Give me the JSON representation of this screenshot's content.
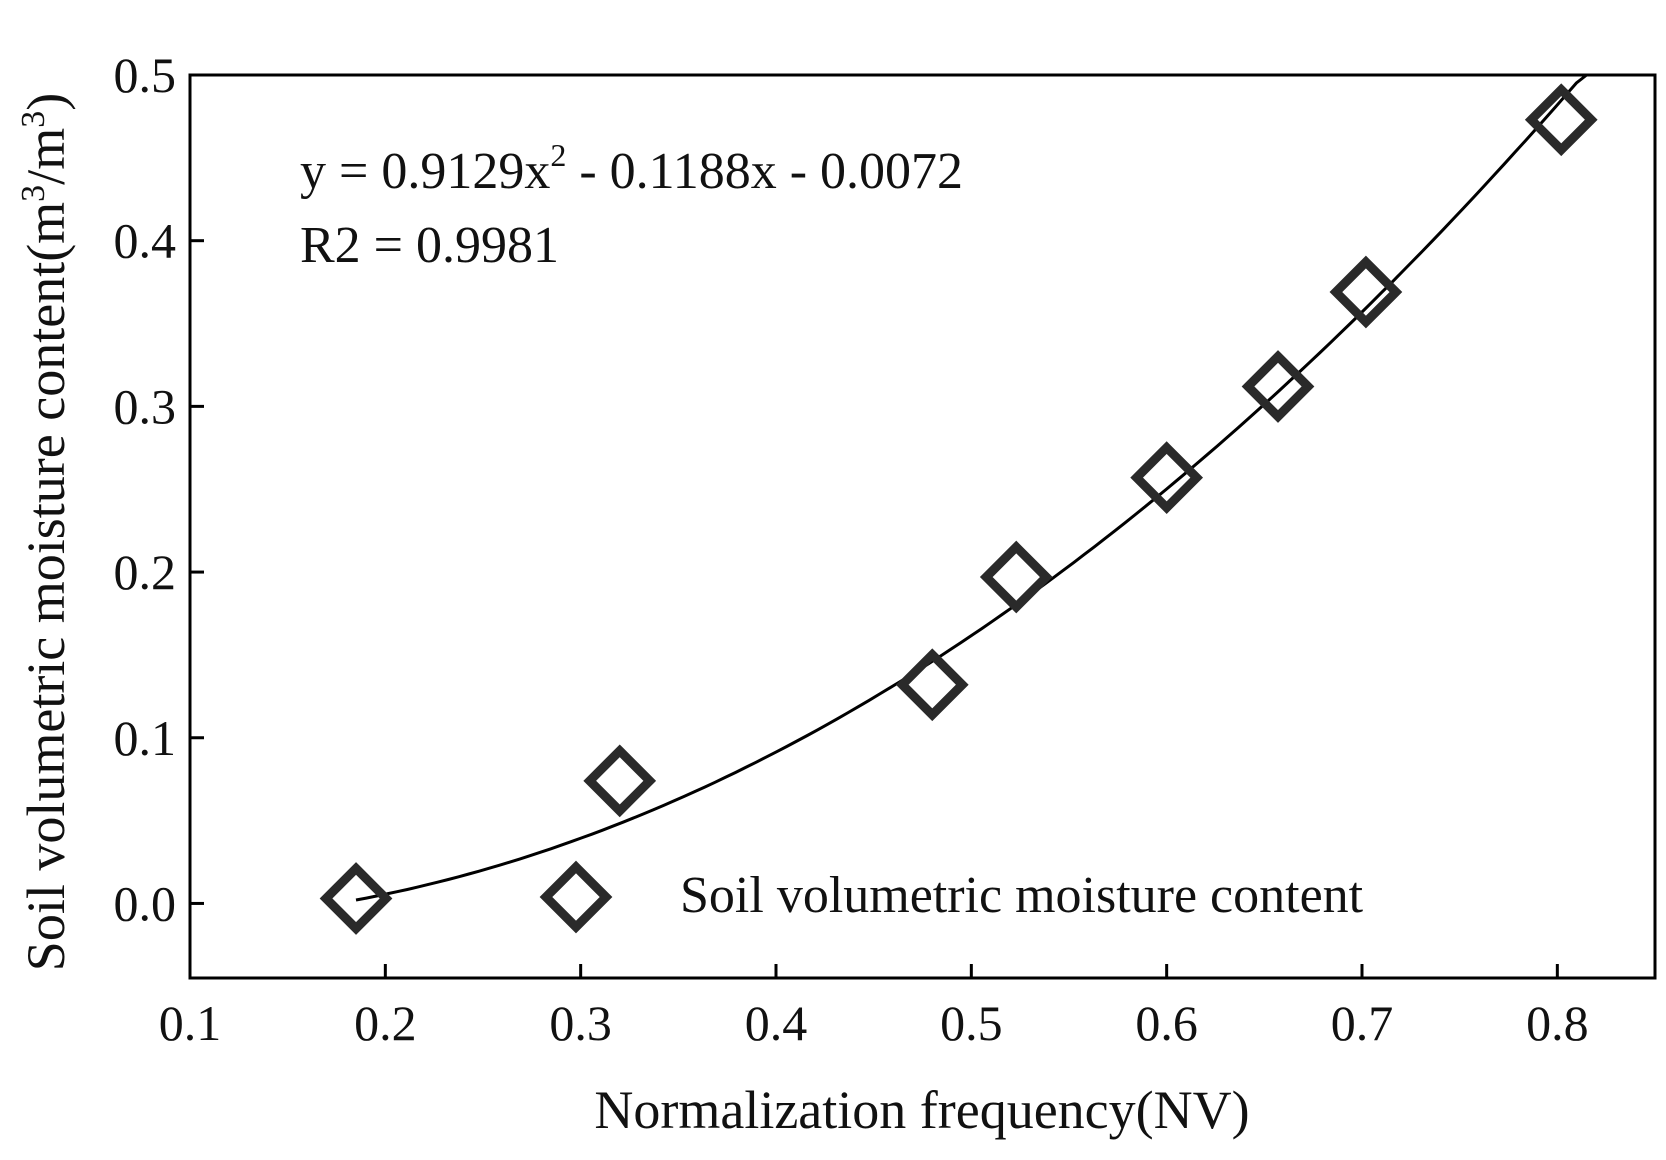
{
  "chart_data": {
    "type": "scatter",
    "title": "",
    "xlabel": "Normalization frequency(NV)",
    "ylabel": {
      "prefix": "Soil volumetric moisture content(m",
      "sup1": "3",
      "mid": "/m",
      "sup2": "3",
      "suffix": ")"
    },
    "xlim": [
      0.1,
      0.85
    ],
    "ylim": [
      -0.045,
      0.5
    ],
    "grid": false,
    "x_ticks": [
      {
        "value": 0.1,
        "label": "0.1"
      },
      {
        "value": 0.2,
        "label": "0.2"
      },
      {
        "value": 0.3,
        "label": "0.3"
      },
      {
        "value": 0.4,
        "label": "0.4"
      },
      {
        "value": 0.5,
        "label": "0.5"
      },
      {
        "value": 0.6,
        "label": "0.6"
      },
      {
        "value": 0.7,
        "label": "0.7"
      },
      {
        "value": 0.8,
        "label": "0.8"
      }
    ],
    "y_ticks": [
      {
        "value": 0.0,
        "label": "0.0"
      },
      {
        "value": 0.1,
        "label": "0.1"
      },
      {
        "value": 0.2,
        "label": "0.2"
      },
      {
        "value": 0.3,
        "label": "0.3"
      },
      {
        "value": 0.4,
        "label": "0.4"
      },
      {
        "value": 0.5,
        "label": "0.5"
      }
    ],
    "series": [
      {
        "name": "Soil volumetric moisture content",
        "marker": "diamond-open",
        "points": [
          {
            "x": 0.185,
            "y": 0.003
          },
          {
            "x": 0.32,
            "y": 0.074
          },
          {
            "x": 0.48,
            "y": 0.132
          },
          {
            "x": 0.523,
            "y": 0.197
          },
          {
            "x": 0.6,
            "y": 0.257
          },
          {
            "x": 0.657,
            "y": 0.312
          },
          {
            "x": 0.702,
            "y": 0.369
          },
          {
            "x": 0.802,
            "y": 0.473
          }
        ]
      }
    ],
    "fit": {
      "type": "polynomial",
      "coefficients": {
        "a": 0.9129,
        "b": -0.1188,
        "c": -0.0072
      },
      "x_range": [
        0.185,
        0.815
      ],
      "equation": {
        "prefix": "y = 0.9129x",
        "sup": "2",
        "suffix": " - 0.1188x - 0.0072"
      },
      "r2_label": "R2 = 0.9981"
    },
    "legend": {
      "position": "bottom-right",
      "label": "Soil volumetric moisture content"
    },
    "colors": {
      "marker": "#2a2a2a",
      "fit_line": "#000000",
      "axis": "#000000",
      "text": "#111111"
    }
  }
}
